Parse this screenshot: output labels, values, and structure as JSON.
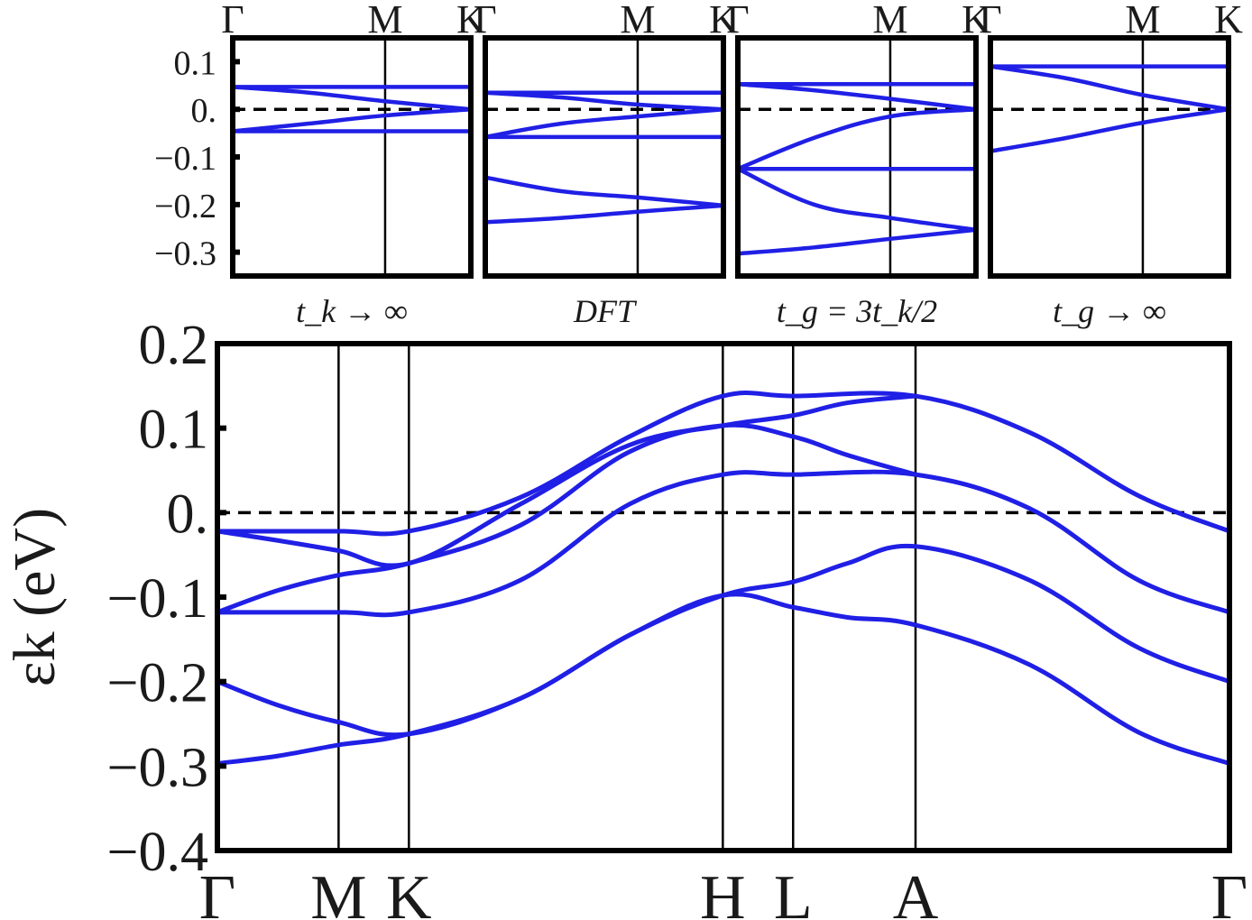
{
  "chart_data": [
    {
      "type": "line",
      "title": "",
      "caption": "t_k → ∞",
      "ylim": [
        -0.35,
        0.15
      ],
      "yticks": [
        0.1,
        0.0,
        -0.1,
        -0.2,
        -0.3
      ],
      "ytick_labels": [
        "0.1",
        "0.",
        "−0.1",
        "−0.2",
        "−0.3"
      ],
      "kpoints": [
        {
          "label": "Γ",
          "x": 0
        },
        {
          "label": "M",
          "x": 0.64
        },
        {
          "label": "K",
          "x": 1.0
        }
      ],
      "reference_line": 0.0,
      "series": [
        {
          "x": [
            0,
            0.64,
            1.0
          ],
          "values": [
            0.047,
            0.047,
            0.047
          ]
        },
        {
          "x": [
            0,
            0.32,
            0.64,
            1.0
          ],
          "values": [
            0.047,
            0.035,
            0.017,
            0.0
          ]
        },
        {
          "x": [
            0,
            0.32,
            0.64,
            1.0
          ],
          "values": [
            -0.046,
            -0.03,
            -0.013,
            0.0
          ]
        },
        {
          "x": [
            0,
            0.64,
            1.0
          ],
          "values": [
            -0.046,
            -0.046,
            -0.046
          ]
        }
      ]
    },
    {
      "type": "line",
      "title": "",
      "caption": "DFT",
      "ylim": [
        -0.35,
        0.15
      ],
      "kpoints": [
        {
          "label": "Γ",
          "x": 0
        },
        {
          "label": "M",
          "x": 0.64
        },
        {
          "label": "K",
          "x": 1.0
        }
      ],
      "reference_line": 0.0,
      "series": [
        {
          "x": [
            0,
            0.64,
            1.0
          ],
          "values": [
            0.035,
            0.035,
            0.035
          ]
        },
        {
          "x": [
            0,
            0.32,
            0.64,
            1.0
          ],
          "values": [
            0.035,
            0.025,
            0.01,
            0.0
          ]
        },
        {
          "x": [
            0,
            0.32,
            0.64,
            1.0
          ],
          "values": [
            -0.058,
            -0.03,
            -0.015,
            0.0
          ]
        },
        {
          "x": [
            0,
            0.64,
            1.0
          ],
          "values": [
            -0.058,
            -0.058,
            -0.058
          ]
        },
        {
          "x": [
            0,
            0.32,
            0.64,
            1.0
          ],
          "values": [
            -0.143,
            -0.172,
            -0.185,
            -0.202
          ]
        },
        {
          "x": [
            0,
            0.32,
            0.64,
            1.0
          ],
          "values": [
            -0.237,
            -0.228,
            -0.215,
            -0.202
          ]
        }
      ]
    },
    {
      "type": "line",
      "title": "",
      "caption": "t_g = 3t_k/2",
      "ylim": [
        -0.35,
        0.15
      ],
      "kpoints": [
        {
          "label": "Γ",
          "x": 0
        },
        {
          "label": "M",
          "x": 0.64
        },
        {
          "label": "K",
          "x": 1.0
        }
      ],
      "reference_line": 0.0,
      "series": [
        {
          "x": [
            0,
            0.64,
            1.0
          ],
          "values": [
            0.053,
            0.053,
            0.053
          ]
        },
        {
          "x": [
            0,
            0.32,
            0.64,
            1.0
          ],
          "values": [
            0.053,
            0.04,
            0.022,
            0.0
          ]
        },
        {
          "x": [
            0,
            0.32,
            0.64,
            1.0
          ],
          "values": [
            -0.125,
            -0.06,
            -0.015,
            0.0
          ]
        },
        {
          "x": [
            0,
            0.64,
            1.0
          ],
          "values": [
            -0.125,
            -0.125,
            -0.125
          ]
        },
        {
          "x": [
            0,
            0.32,
            0.64,
            1.0
          ],
          "values": [
            -0.125,
            -0.2,
            -0.228,
            -0.253
          ]
        },
        {
          "x": [
            0,
            0.32,
            0.64,
            1.0
          ],
          "values": [
            -0.303,
            -0.29,
            -0.272,
            -0.253
          ]
        }
      ]
    },
    {
      "type": "line",
      "title": "",
      "caption": "t_g → ∞",
      "ylim": [
        -0.35,
        0.15
      ],
      "kpoints": [
        {
          "label": "Γ",
          "x": 0
        },
        {
          "label": "M",
          "x": 0.64
        },
        {
          "label": "K",
          "x": 1.0
        }
      ],
      "reference_line": 0.0,
      "series": [
        {
          "x": [
            0,
            0.64,
            1.0
          ],
          "values": [
            0.09,
            0.09,
            0.09
          ]
        },
        {
          "x": [
            0,
            0.32,
            0.64,
            1.0
          ],
          "values": [
            0.09,
            0.065,
            0.03,
            0.0
          ]
        },
        {
          "x": [
            0,
            0.32,
            0.64,
            1.0
          ],
          "values": [
            -0.088,
            -0.06,
            -0.028,
            0.0
          ]
        }
      ]
    },
    {
      "type": "line",
      "title": "",
      "ylabel": "εk (eV)",
      "ylim": [
        -0.4,
        0.2
      ],
      "yticks": [
        0.2,
        0.1,
        0.0,
        -0.1,
        -0.2,
        -0.3,
        -0.4
      ],
      "ytick_labels": [
        "0.2",
        "0.1",
        "0.",
        "−0.1",
        "−0.2",
        "−0.3",
        "−0.4"
      ],
      "kpoints": [
        {
          "label": "Γ",
          "x": 0
        },
        {
          "label": "M",
          "x": 1.0
        },
        {
          "label": "K",
          "x": 1.58
        },
        {
          "label": "H",
          "x": 4.17
        },
        {
          "label": "L",
          "x": 4.75
        },
        {
          "label": "A",
          "x": 5.76
        },
        {
          "label": "Γ",
          "x": 8.35
        }
      ],
      "reference_line": 0.0,
      "series": [
        {
          "x": [
            0,
            1.0,
            1.58,
            2.5,
            3.4,
            4.17,
            4.75,
            5.76,
            6.7,
            7.6,
            8.35
          ],
          "values": [
            -0.022,
            -0.022,
            -0.022,
            0.018,
            0.09,
            0.138,
            0.138,
            0.138,
            0.095,
            0.02,
            -0.022
          ]
        },
        {
          "x": [
            0,
            0.5,
            1.0,
            1.58,
            2.5,
            3.4,
            4.17,
            4.75,
            5.2,
            5.76
          ],
          "values": [
            -0.022,
            -0.033,
            -0.045,
            -0.06,
            0.01,
            0.08,
            0.103,
            0.115,
            0.13,
            0.138
          ]
        },
        {
          "x": [
            0,
            0.5,
            1.0,
            1.58,
            2.5,
            3.4,
            4.17,
            4.75,
            5.2,
            5.76
          ],
          "values": [
            -0.118,
            -0.092,
            -0.074,
            -0.06,
            -0.015,
            0.072,
            0.103,
            0.09,
            0.068,
            0.045
          ]
        },
        {
          "x": [
            0,
            1.0,
            1.58,
            2.5,
            3.4,
            4.17,
            4.75,
            5.76,
            6.7,
            7.6,
            8.35
          ],
          "values": [
            -0.118,
            -0.118,
            -0.118,
            -0.08,
            0.01,
            0.045,
            0.045,
            0.045,
            0.005,
            -0.08,
            -0.118
          ]
        },
        {
          "x": [
            0,
            0.5,
            1.0,
            1.58,
            2.5,
            3.4,
            4.17,
            4.75,
            5.2,
            5.76,
            6.7,
            7.6,
            8.35
          ],
          "values": [
            -0.2,
            -0.228,
            -0.248,
            -0.262,
            -0.22,
            -0.145,
            -0.098,
            -0.082,
            -0.06,
            -0.04,
            -0.08,
            -0.16,
            -0.2
          ]
        },
        {
          "x": [
            0,
            0.5,
            1.0,
            1.58,
            2.5,
            3.4,
            4.17,
            4.75,
            5.2,
            5.76,
            6.7,
            7.6,
            8.35
          ],
          "values": [
            -0.297,
            -0.288,
            -0.275,
            -0.262,
            -0.22,
            -0.145,
            -0.098,
            -0.112,
            -0.124,
            -0.133,
            -0.18,
            -0.26,
            -0.297
          ]
        }
      ]
    }
  ],
  "colors": {
    "band": "#1f1fe6",
    "frame": "#000000",
    "reference": "#000000"
  }
}
